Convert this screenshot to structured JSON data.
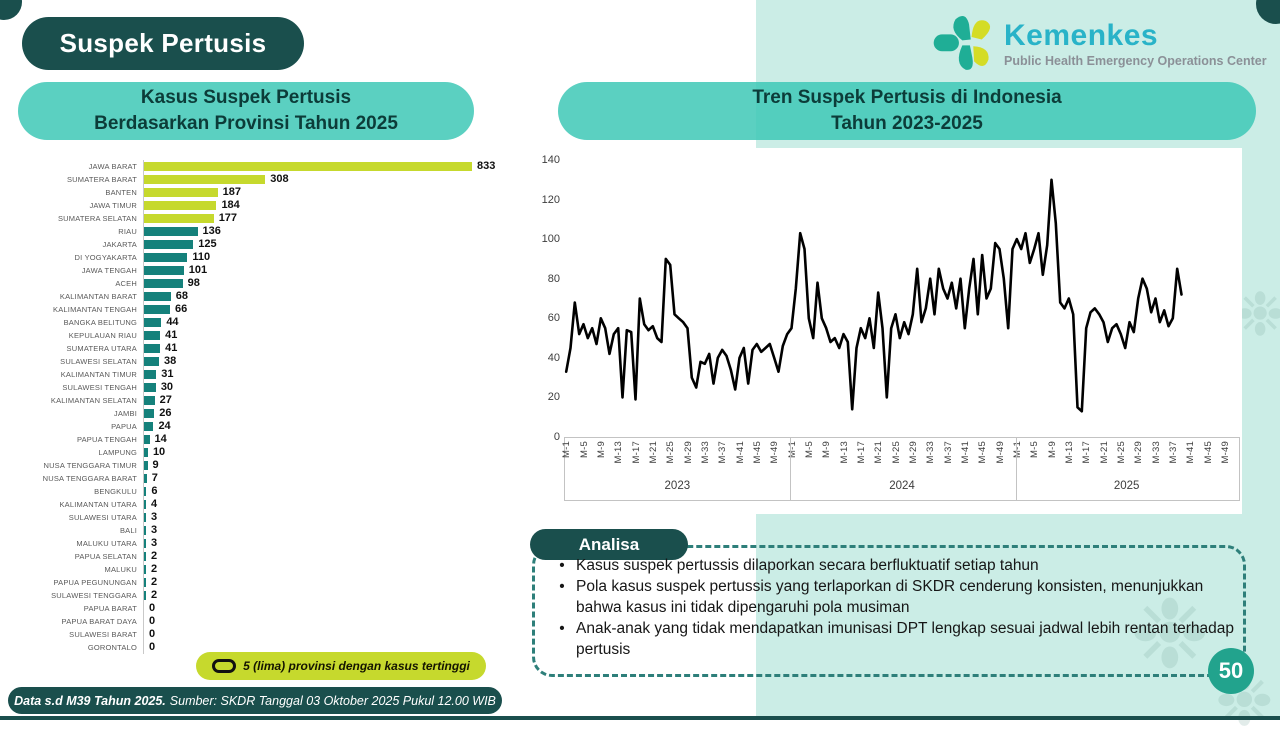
{
  "slide": {
    "title": "Suspek Pertusis",
    "page_number": "50",
    "footer_bold": "Data s.d M39 Tahun 2025.",
    "footer_rest": "Sumber: SKDR Tanggal 03 Oktober 2025 Pukul 12.00 WIB"
  },
  "logo": {
    "name": "Kemenkes",
    "subtitle": "Public Health Emergency Operations Center"
  },
  "bar_panel": {
    "title_line1": "Kasus Suspek Pertusis",
    "title_line2": "Berdasarkan Provinsi Tahun 2025",
    "legend_label": "5 (lima) provinsi dengan kasus tertinggi"
  },
  "line_panel": {
    "title_line1": "Tren Suspek Pertusis di Indonesia",
    "title_line2": "Tahun 2023-2025"
  },
  "analysis": {
    "title": "Analisa",
    "bullets": [
      "Kasus suspek pertussis dilaporkan secara berfluktuatif setiap tahun",
      "Pola kasus suspek pertussis yang terlaporkan di SKDR cenderung konsisten, menunjukkan bahwa kasus ini tidak dipengaruhi pola musiman",
      "Anak-anak yang tidak mendapatkan imunisasi DPT lengkap sesuai jadwal lebih rentan terhadap pertusis"
    ]
  },
  "colors": {
    "dark_teal": "#1a4f4d",
    "turquoise": "#3ec8b6",
    "mint": "#cbede6",
    "lime": "#c6d92d",
    "teal_bar": "#15817b",
    "line": "#000000",
    "badge": "#22a38d",
    "kemenkes_cyan": "#29b3c8"
  },
  "chart_data": [
    {
      "type": "bar",
      "title": "Kasus Suspek Pertusis Berdasarkan Provinsi Tahun 2025",
      "orientation": "horizontal",
      "highlight_count": 5,
      "highlight_color": "#c6d92d",
      "bar_color": "#15817b",
      "categories": [
        "JAWA BARAT",
        "SUMATERA BARAT",
        "BANTEN",
        "JAWA TIMUR",
        "SUMATERA SELATAN",
        "RIAU",
        "JAKARTA",
        "DI YOGYAKARTA",
        "JAWA TENGAH",
        "ACEH",
        "KALIMANTAN BARAT",
        "KALIMANTAN TENGAH",
        "BANGKA BELITUNG",
        "KEPULAUAN RIAU",
        "SUMATERA UTARA",
        "SULAWESI SELATAN",
        "KALIMANTAN TIMUR",
        "SULAWESI TENGAH",
        "KALIMANTAN SELATAN",
        "JAMBI",
        "PAPUA",
        "PAPUA TENGAH",
        "LAMPUNG",
        "NUSA TENGGARA TIMUR",
        "NUSA TENGGARA BARAT",
        "BENGKULU",
        "KALIMANTAN UTARA",
        "SULAWESI UTARA",
        "BALI",
        "MALUKU UTARA",
        "PAPUA SELATAN",
        "MALUKU",
        "PAPUA PEGUNUNGAN",
        "SULAWESI TENGGARA",
        "PAPUA BARAT",
        "PAPUA BARAT DAYA",
        "SULAWESI BARAT",
        "GORONTALO"
      ],
      "values": [
        833,
        308,
        187,
        184,
        177,
        136,
        125,
        110,
        101,
        98,
        68,
        66,
        44,
        41,
        41,
        38,
        31,
        30,
        27,
        26,
        24,
        14,
        10,
        9,
        7,
        6,
        4,
        3,
        3,
        3,
        2,
        2,
        2,
        2,
        0,
        0,
        0,
        0
      ]
    },
    {
      "type": "line",
      "title": "Tren Suspek Pertusis di Indonesia Tahun 2023-2025",
      "ylim": [
        0,
        140
      ],
      "yticks": [
        0,
        20,
        40,
        60,
        80,
        100,
        120,
        140
      ],
      "grid": false,
      "weeks_per_year": 52,
      "week_ticks": [
        "M-1",
        "M-5",
        "M-9",
        "M-13",
        "M-17",
        "M-21",
        "M-25",
        "M-29",
        "M-33",
        "M-37",
        "M-41",
        "M-45",
        "M-49"
      ],
      "years": [
        "2023",
        "2024",
        "2025"
      ],
      "note": "values are weekly suspected-pertussis counts estimated from the plotted line; 2025 data ends at week 39",
      "series": [
        {
          "name": "2023",
          "values": [
            33,
            45,
            68,
            52,
            57,
            50,
            55,
            47,
            60,
            55,
            42,
            52,
            55,
            20,
            54,
            53,
            19,
            70,
            57,
            54,
            56,
            50,
            48,
            90,
            87,
            62,
            60,
            58,
            55,
            30,
            25,
            38,
            37,
            42,
            27,
            40,
            44,
            41,
            34,
            24,
            40,
            45,
            27,
            44,
            47,
            43,
            45,
            47,
            40,
            33,
            46,
            52
          ]
        },
        {
          "name": "2024",
          "values": [
            55,
            75,
            103,
            95,
            60,
            50,
            78,
            60,
            55,
            48,
            50,
            45,
            52,
            48,
            14,
            45,
            55,
            50,
            60,
            45,
            73,
            55,
            20,
            55,
            62,
            50,
            58,
            52,
            62,
            85,
            58,
            65,
            80,
            62,
            85,
            75,
            70,
            78,
            65,
            80,
            55,
            75,
            90,
            62,
            92,
            70,
            75,
            98,
            95,
            80,
            55,
            95
          ]
        },
        {
          "name": "2025",
          "values": [
            100,
            95,
            103,
            88,
            95,
            103,
            82,
            97,
            130,
            108,
            68,
            65,
            70,
            62,
            15,
            13,
            55,
            63,
            65,
            62,
            58,
            48,
            55,
            57,
            52,
            45,
            58,
            53,
            70,
            80,
            75,
            63,
            70,
            58,
            64,
            56,
            60,
            85,
            72
          ]
        }
      ]
    }
  ]
}
